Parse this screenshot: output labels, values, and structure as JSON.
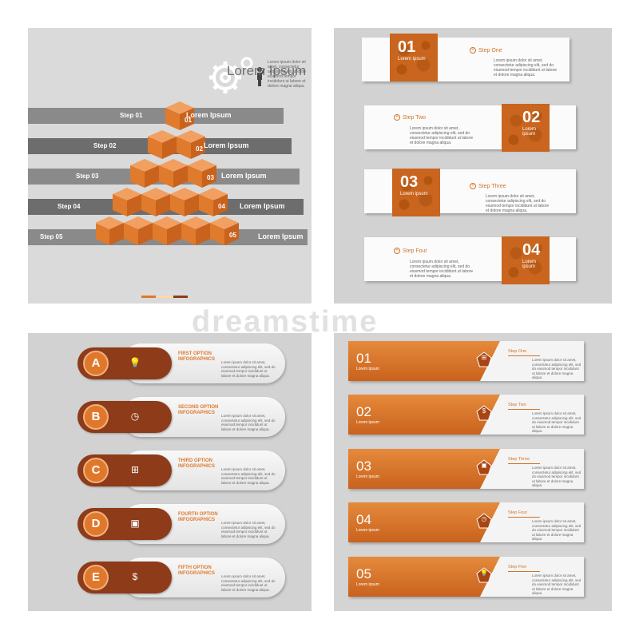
{
  "panel1": {
    "title": "Lorem Ipsum",
    "body_text": "Lorem ipsum dolor sit amet, consectetur adipiscing elit, sed do eiusmod tempor incididunt ut labore et dolore magna aliqua.",
    "steps": [
      "Step 01",
      "Step 02",
      "Step 03",
      "Step 04",
      "Step 05"
    ],
    "numbers": [
      "01",
      "02",
      "03",
      "04",
      "05"
    ],
    "lorem_labels": [
      "Lorem Ipsum",
      "Lorem Ipsum",
      "Lorem Ipsum",
      "Lorem Ipsum",
      "Lorem Ipsum"
    ],
    "colors": {
      "cube": "#e0782c",
      "band_dark": "#6d6d6d",
      "band_light": "#8a8a8a"
    }
  },
  "panel2": {
    "items": [
      {
        "num": "01",
        "sub": "Lorem ipsum",
        "step": "Step One",
        "body": "Lorem ipsum dolor sit amet, consectetur adipiscing elit, sed do eiusmod tempor incididunt ut labore et dolore magna aliqua."
      },
      {
        "num": "02",
        "sub": "Lorem ipsum",
        "step": "Step Two",
        "body": "Lorem ipsum dolor sit amet, consectetur adipiscing elit, sed do eiusmod tempor incididunt ut labore et dolore magna aliqua."
      },
      {
        "num": "03",
        "sub": "Lorem ipsum",
        "step": "Step Three",
        "body": "Lorem ipsum dolor sit amet, consectetur adipiscing elit, sed do eiusmod tempor incididunt ut labore et dolore magna aliqua."
      },
      {
        "num": "04",
        "sub": "Lorem ipsum",
        "step": "Step Four",
        "body": "Lorem ipsum dolor sit amet, consectetur adipiscing elit, sed do eiusmod tempor incididunt ut labore et dolore magna aliqua."
      }
    ]
  },
  "panel3": {
    "items": [
      {
        "letter": "A",
        "icon": "bulb-icon",
        "glyph": "💡",
        "title": "FIRST OPTION",
        "subtitle": "INFOGRAPHICS",
        "body": "Lorem ipsum dolor sit amet, consectetur adipiscing elit, sed do eiusmod tempor incididunt ut labore et dolore magna aliqua."
      },
      {
        "letter": "B",
        "icon": "clock-icon",
        "glyph": "◷",
        "title": "SECOND OPTION",
        "subtitle": "INFOGRAPHICS",
        "body": "Lorem ipsum dolor sit amet, consectetur adipiscing elit, sed do eiusmod tempor incididunt ut labore et dolore magna aliqua."
      },
      {
        "letter": "C",
        "icon": "org-chart-icon",
        "glyph": "⊞",
        "title": "THIRD OPTION",
        "subtitle": "INFOGRAPHICS",
        "body": "Lorem ipsum dolor sit amet, consectetur adipiscing elit, sed do eiusmod tempor incididunt ut labore et dolore magna aliqua."
      },
      {
        "letter": "D",
        "icon": "money-icon",
        "glyph": "▣",
        "title": "FOURTH OPTION",
        "subtitle": "INFOGRAPHICS",
        "body": "Lorem ipsum dolor sit amet, consectetur adipiscing elit, sed do eiusmod tempor incididunt ut labore et dolore magna aliqua."
      },
      {
        "letter": "E",
        "icon": "coin-hand-icon",
        "glyph": "$",
        "title": "FIFTH OPTION",
        "subtitle": "INFOGRAPHICS",
        "body": "Lorem ipsum dolor sit amet, consectetur adipiscing elit, sed do eiusmod tempor incididunt ut labore et dolore magna aliqua."
      }
    ],
    "colors": {
      "pill": "#8d3b18",
      "circle": "#e0782c",
      "heading": "#e07a2c"
    }
  },
  "panel4": {
    "items": [
      {
        "num": "01",
        "sub": "Lorem ipsum",
        "step": "Step One",
        "icon": "org-chart-icon",
        "glyph": "⊞",
        "body": "Lorem ipsum dolor sit amet, consectetur adipiscing elit, sed do eiusmod tempor incididunt ut labore et dolore magna aliqua."
      },
      {
        "num": "02",
        "sub": "Lorem ipsum",
        "step": "Step Two",
        "icon": "coin-hand-icon",
        "glyph": "$",
        "body": "Lorem ipsum dolor sit amet, consectetur adipiscing elit, sed do eiusmod tempor incididunt ut labore et dolore magna aliqua."
      },
      {
        "num": "03",
        "sub": "Lorem ipsum",
        "step": "Step Three",
        "icon": "money-icon",
        "glyph": "▣",
        "body": "Lorem ipsum dolor sit amet, consectetur adipiscing elit, sed do eiusmod tempor incididunt ut labore et dolore magna aliqua."
      },
      {
        "num": "04",
        "sub": "Lorem ipsum",
        "step": "Step Four",
        "icon": "clock-icon",
        "glyph": "◷",
        "body": "Lorem ipsum dolor sit amet, consectetur adipiscing elit, sed do eiusmod tempor incididunt ut labore et dolore magna aliqua."
      },
      {
        "num": "05",
        "sub": "Lorem ipsum",
        "step": "Step Five",
        "icon": "bulb-icon",
        "glyph": "💡",
        "body": "Lorem ipsum dolor sit amet, consectetur adipiscing elit, sed do eiusmod tempor incididunt ut labore et dolore magna aliqua."
      }
    ],
    "colors": {
      "orange_top": "#e58a3c",
      "orange_bottom": "#c9621d"
    }
  },
  "watermark": "dreamstime"
}
